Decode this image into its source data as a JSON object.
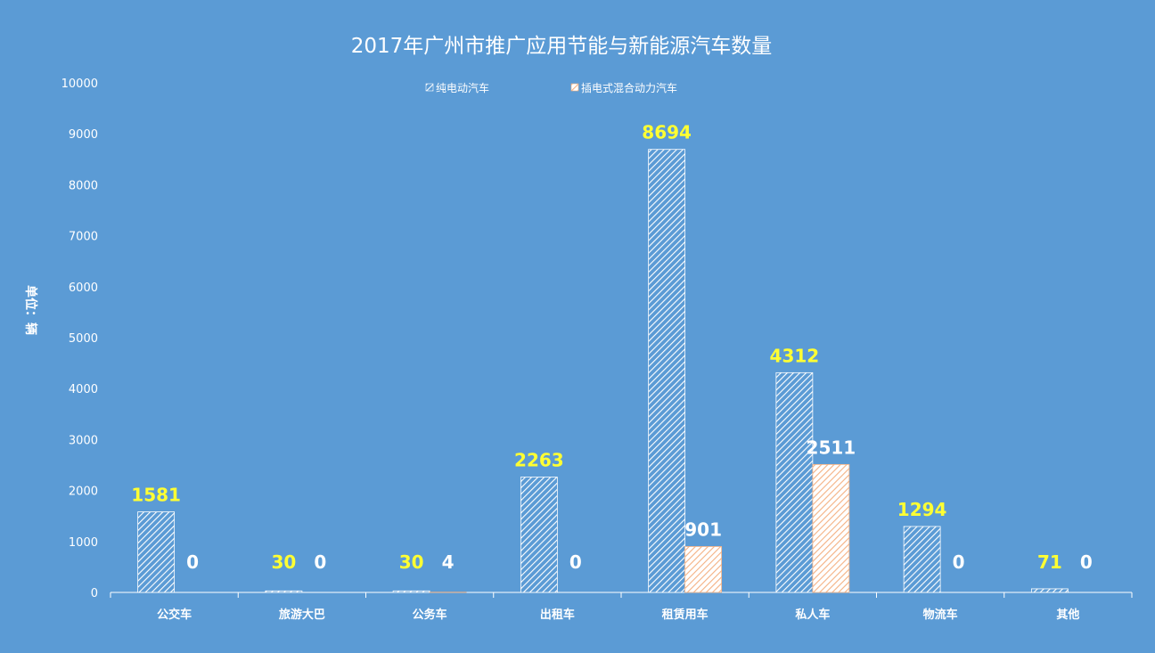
{
  "chart_data": {
    "type": "bar",
    "title": "2017年广州市推广应用节能与新能源汽车数量",
    "xlabel": "",
    "ylabel": "单位：辆",
    "ylim": [
      0,
      10000
    ],
    "yticks": [
      0,
      1000,
      2000,
      3000,
      4000,
      5000,
      6000,
      7000,
      8000,
      9000,
      10000
    ],
    "grid": false,
    "legend_position": "top-center",
    "categories": [
      "公交车",
      "旅游大巴",
      "公务车",
      "出租车",
      "租赁用车",
      "私人车",
      "物流车",
      "其他"
    ],
    "series": [
      {
        "name": "纯电动汽车",
        "values": [
          1581,
          30,
          30,
          2263,
          8694,
          4312,
          1294,
          71
        ],
        "color": "#ffffff",
        "label_color": "#ffff33"
      },
      {
        "name": "插电式混合动力汽车",
        "values": [
          0,
          0,
          4,
          0,
          901,
          2511,
          0,
          0
        ],
        "color": "#f4b183",
        "label_color": "#ffffff"
      }
    ]
  }
}
